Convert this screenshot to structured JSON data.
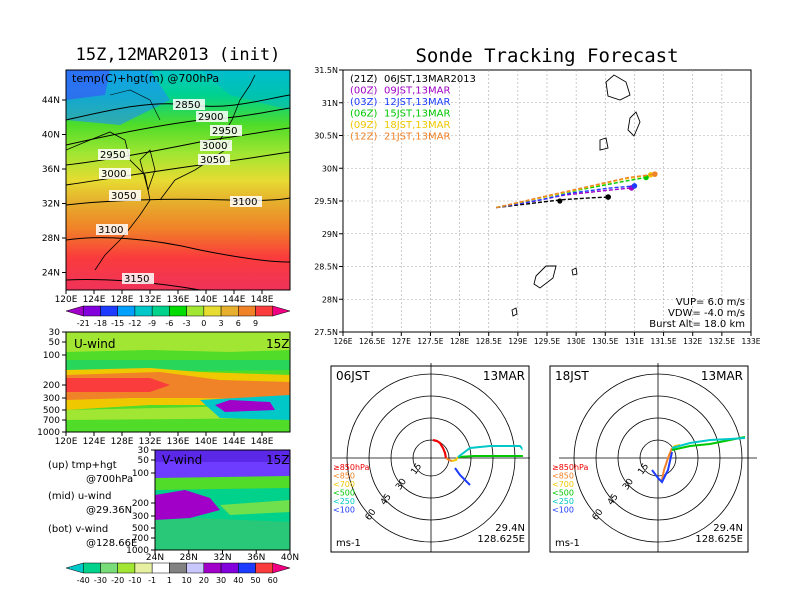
{
  "titles": {
    "left": "15Z,12MAR2013 (init)",
    "right": "Sonde Tracking Forecast"
  },
  "map_panel": {
    "label": "temp(C)+hgt(m) @700hPa",
    "lon_ticks": [
      "120E",
      "124E",
      "128E",
      "132E",
      "136E",
      "140E",
      "144E",
      "148E"
    ],
    "lat_ticks": [
      "44N",
      "40N",
      "36N",
      "32N",
      "28N",
      "24N"
    ],
    "contour_labels": [
      "2850",
      "2900",
      "2950",
      "3000",
      "3050",
      "2950",
      "3000",
      "3050",
      "3100",
      "3100",
      "3150"
    ],
    "colorbar_labels": [
      "-21",
      "-18",
      "-15",
      "-12",
      "-9",
      "-6",
      "-3",
      "0",
      "3",
      "6",
      "9"
    ],
    "colorbar_colors": [
      "#a000c8",
      "#8200dc",
      "#1e3cff",
      "#00a0ff",
      "#00c8c8",
      "#00d28c",
      "#00dc00",
      "#a0e632",
      "#e6dc32",
      "#e6af2d",
      "#f08228",
      "#fa3c3c",
      "#f00082"
    ]
  },
  "uwind_panel": {
    "label": "U-wind",
    "time": "15Z",
    "p_ticks": [
      "30",
      "50",
      "100",
      "200",
      "300",
      "500",
      "700",
      "1000"
    ],
    "lon_ticks": [
      "120E",
      "124E",
      "128E",
      "132E",
      "136E",
      "140E",
      "144E",
      "148E"
    ]
  },
  "vwind_panel": {
    "label": "V-wind",
    "time": "15Z",
    "p_ticks": [
      "30",
      "50",
      "100",
      "200",
      "300",
      "500",
      "700",
      "1000"
    ],
    "lat_ticks": [
      "24N",
      "28N",
      "32N",
      "36N",
      "40N"
    ]
  },
  "legend_notes": {
    "up": "(up) tmp+hgt",
    "up2": "@700hPa",
    "mid": "(mid) u-wind",
    "mid2": "@29.36N",
    "bot": "(bot) v-wind",
    "bot2": "@128.66E"
  },
  "wind_colorbar": {
    "labels": [
      "-40",
      "-30",
      "-20",
      "-10",
      "-1",
      "1",
      "10",
      "20",
      "30",
      "40",
      "50",
      "60"
    ],
    "colors": [
      "#00c8c8",
      "#00d28c",
      "#78dc78",
      "#a0e632",
      "#e6f0a0",
      "#ffffff",
      "#828282",
      "#c8c8ff",
      "#a000c8",
      "#8200dc",
      "#1e3cff",
      "#fa3c3c",
      "#f00082"
    ]
  },
  "track_map": {
    "lon_ticks": [
      "126E",
      "126.5E",
      "127E",
      "127.5E",
      "128E",
      "128.5E",
      "129E",
      "129.5E",
      "130E",
      "130.5E",
      "131E",
      "131.5E",
      "132E",
      "132.5E",
      "133E"
    ],
    "lat_ticks": [
      "31.5N",
      "31N",
      "30.5N",
      "30N",
      "29.5N",
      "29N",
      "28.5N",
      "28N",
      "27.5N"
    ],
    "legend": [
      {
        "tag": "(21Z)",
        "time": "06JST,13MAR2013",
        "color": "#000000"
      },
      {
        "tag": "(00Z)",
        "time": "09JST,13MAR",
        "color": "#a000c8"
      },
      {
        "tag": "(03Z)",
        "time": "12JST,13MAR",
        "color": "#1e3cff"
      },
      {
        "tag": "(06Z)",
        "time": "15JST,13MAR",
        "color": "#00c800"
      },
      {
        "tag": "(09Z)",
        "time": "18JST,13MAR",
        "color": "#f0c800"
      },
      {
        "tag": "(12Z)",
        "time": "21JST,13MAR",
        "color": "#f08228"
      }
    ],
    "params": {
      "vup": "VUP= 6.0 m/s",
      "vdw": "VDW= -4.0 m/s",
      "burst": "Burst Alt= 18.0 km"
    }
  },
  "hodo_left": {
    "time": "06JST",
    "date": "13MAR",
    "lat": "29.4N",
    "lon": "128.625E",
    "unit": "ms-1"
  },
  "hodo_right": {
    "time": "18JST",
    "date": "13MAR",
    "lat": "29.4N",
    "lon": "128.625E",
    "unit": "ms-1"
  },
  "hodo_legend": [
    {
      "label": "≥850hPa",
      "color": "#f00000"
    },
    {
      "label": "<850",
      "color": "#f08228"
    },
    {
      "label": "<700",
      "color": "#f0c800"
    },
    {
      "label": "<500",
      "color": "#00c800"
    },
    {
      "label": "<250",
      "color": "#00c8c8"
    },
    {
      "label": "<100",
      "color": "#1e3cff"
    }
  ],
  "hodo_ring_labels": [
    "15",
    "30",
    "45",
    "60"
  ],
  "chart_data": [
    {
      "type": "line",
      "title": "Sonde Tracking Forecast",
      "x_label": "",
      "y_label": "",
      "xlim": [
        126.0,
        133.0
      ],
      "ylim": [
        27.5,
        31.5
      ],
      "series": [
        {
          "name": "06JST,13MAR2013",
          "color": "#000000",
          "x": [
            128.63,
            129.2,
            129.75,
            130.3,
            130.55
          ],
          "y": [
            29.4,
            29.46,
            29.52,
            29.55,
            29.56
          ]
        },
        {
          "name": "09JST,13MAR",
          "color": "#a000c8",
          "x": [
            128.63,
            129.3,
            129.8,
            130.5,
            130.95
          ],
          "y": [
            29.4,
            29.5,
            29.59,
            29.66,
            29.7
          ]
        },
        {
          "name": "12JST,13MAR",
          "color": "#1e3cff",
          "x": [
            128.63,
            129.4,
            129.9,
            130.6,
            131.0
          ],
          "y": [
            29.4,
            29.52,
            29.62,
            29.7,
            29.73
          ]
        },
        {
          "name": "15JST,13MAR",
          "color": "#00c800",
          "x": [
            128.63,
            129.4,
            130.0,
            130.7,
            131.2
          ],
          "y": [
            29.4,
            29.55,
            29.66,
            29.78,
            29.86
          ]
        },
        {
          "name": "18JST,13MAR",
          "color": "#f0c800",
          "x": [
            128.63,
            129.5,
            130.1,
            130.8,
            131.28
          ],
          "y": [
            29.4,
            29.57,
            29.69,
            29.83,
            29.9
          ]
        },
        {
          "name": "21JST,13MAR",
          "color": "#f08228",
          "x": [
            128.63,
            129.5,
            130.2,
            130.9,
            131.35
          ],
          "y": [
            29.4,
            29.58,
            29.72,
            29.86,
            29.91
          ]
        }
      ]
    }
  ]
}
